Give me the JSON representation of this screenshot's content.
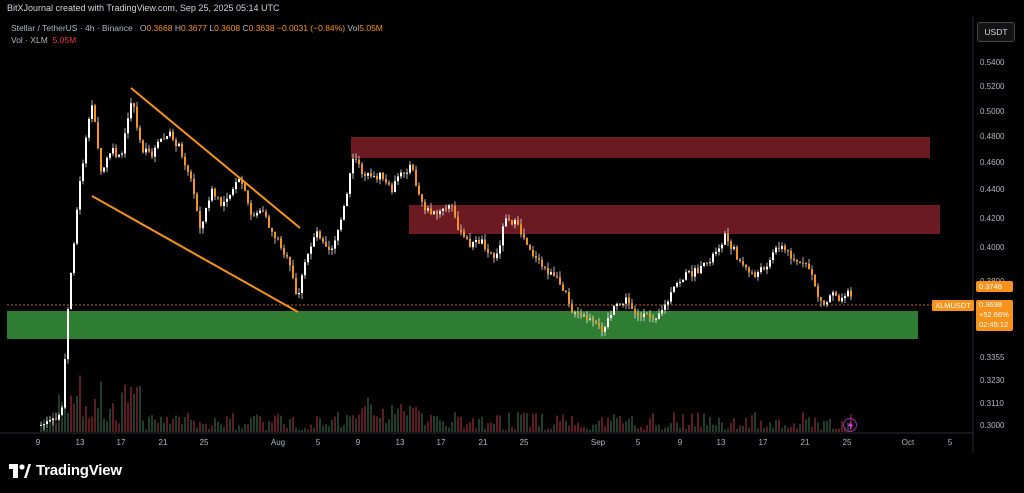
{
  "header": {
    "credit": "BitXJournal created with TradingView.com, Sep 25, 2025 05:14 UTC"
  },
  "legend": {
    "symbol": "Stellar / TetherUS · 4h · Binance",
    "open_label": "O",
    "open": "0.3668",
    "high_label": "H",
    "high": "0.3677",
    "low_label": "L",
    "low": "0.3608",
    "close_label": "C",
    "close": "0.3638",
    "change": "−0.0031 (−0.84%)",
    "vol_label": "Vol",
    "vol": "5.05M",
    "vol_series_label": "Vol · XLM",
    "vol_series_value": "5.05M"
  },
  "price_axis": {
    "currency": "USDT",
    "ticks": [
      "0.5400",
      "0.5200",
      "0.5000",
      "0.4800",
      "0.4600",
      "0.4400",
      "0.4200",
      "0.4000",
      "0.3800",
      "0.3355",
      "0.3230",
      "0.3110",
      "0.3000"
    ],
    "last_high": "0.3746",
    "last_price": "0.3638",
    "last_change": "+52.66%",
    "countdown": "02:45:12",
    "symbol_tag": "XLMUSDT"
  },
  "time_axis": {
    "ticks": [
      "9",
      "13",
      "17",
      "21",
      "25",
      "Aug",
      "5",
      "9",
      "13",
      "17",
      "21",
      "25",
      "Sep",
      "5",
      "9",
      "13",
      "17",
      "21",
      "25",
      "Oct",
      "5"
    ]
  },
  "colors": {
    "candle": "#f7931a",
    "wick": "#ffffff",
    "resistance_zone": "#6b1a22",
    "support_zone": "#2e7d32",
    "channel_line": "#f7931a",
    "volume": "#3a1216"
  },
  "icons": {
    "indicator": "lightning-icon",
    "logo": "tradingview-logo-icon"
  },
  "footer": {
    "brand": "TradingView"
  }
}
